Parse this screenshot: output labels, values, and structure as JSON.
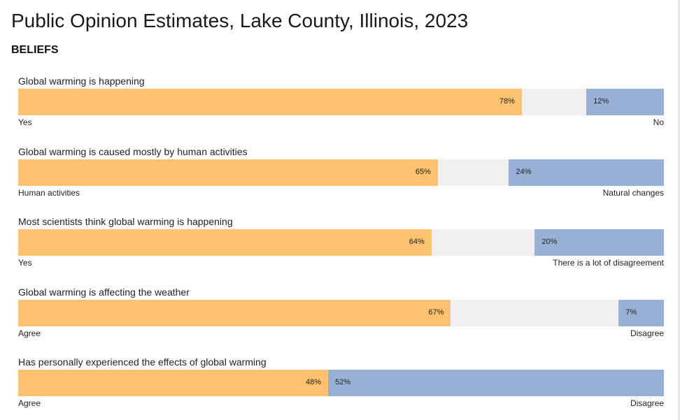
{
  "page": {
    "title": "Public Opinion Estimates, Lake County, Illinois, 2023",
    "section": "BELIEFS"
  },
  "colors": {
    "positive": "#fcc26f",
    "negative": "#97b0d3",
    "neutral": "#f0f0f0"
  },
  "chart_data": {
    "type": "bar",
    "orientation": "horizontal-stacked",
    "title": "Public Opinion Estimates, Lake County, Illinois, 2023",
    "subtitle": "BELIEFS",
    "xlim": [
      0,
      100
    ],
    "unit": "%",
    "rows": [
      {
        "question": "Global warming is happening",
        "yes_value": 78,
        "no_value": 12,
        "yes_text": "78%",
        "no_text": "12%",
        "left_label": "Yes",
        "right_label": "No"
      },
      {
        "question": "Global warming is caused mostly by human activities",
        "yes_value": 65,
        "no_value": 24,
        "yes_text": "65%",
        "no_text": "24%",
        "left_label": "Human activities",
        "right_label": "Natural changes"
      },
      {
        "question": "Most scientists think global warming is happening",
        "yes_value": 64,
        "no_value": 20,
        "yes_text": "64%",
        "no_text": "20%",
        "left_label": "Yes",
        "right_label": "There is a lot of disagreement"
      },
      {
        "question": "Global warming is affecting the weather",
        "yes_value": 67,
        "no_value": 7,
        "yes_text": "67%",
        "no_text": "7%",
        "left_label": "Agree",
        "right_label": "Disagree"
      },
      {
        "question": "Has personally experienced the effects of global warming",
        "yes_value": 48,
        "no_value": 52,
        "yes_text": "48%",
        "no_text": "52%",
        "left_label": "Agree",
        "right_label": "Disagree"
      }
    ]
  }
}
